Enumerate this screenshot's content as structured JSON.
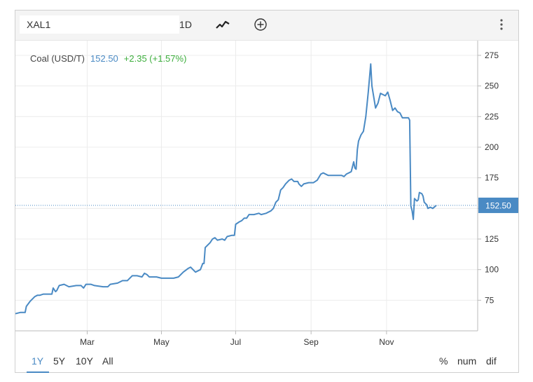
{
  "toolbar": {
    "symbol_value": "XAL1",
    "interval_label": "1D",
    "chart_type_icon": "line-chart-icon",
    "add_icon": "plus-circle-icon",
    "menu_icon": "vertical-ellipsis-icon"
  },
  "legend": {
    "name": "Coal (USD/T)",
    "price": "152.50",
    "change": "+2.35 (+1.57%)"
  },
  "colors": {
    "line": "#4a8ac4",
    "price_tag": "#4a8ac4",
    "change_positive": "#3cae3c",
    "grid": "#ececec"
  },
  "range_buttons": [
    {
      "label": "1Y",
      "active": true
    },
    {
      "label": "5Y",
      "active": false
    },
    {
      "label": "10Y",
      "active": false
    },
    {
      "label": "All",
      "active": false
    }
  ],
  "mode_buttons": [
    {
      "label": "%"
    },
    {
      "label": "num"
    },
    {
      "label": "dif"
    }
  ],
  "chart_data": {
    "type": "line",
    "title": "",
    "xlabel": "",
    "ylabel": "",
    "ylim": [
      50,
      287
    ],
    "y_ticks": [
      75,
      100,
      125,
      150,
      175,
      200,
      225,
      250,
      275
    ],
    "x_ticks": [
      {
        "label": "Mar",
        "t": 59
      },
      {
        "label": "May",
        "t": 120
      },
      {
        "label": "Jul",
        "t": 181
      },
      {
        "label": "Sep",
        "t": 243
      },
      {
        "label": "Nov",
        "t": 305
      }
    ],
    "xlim": [
      0,
      335
    ],
    "current_value": 152.5,
    "current_label": "152.50",
    "grid": true,
    "series": [
      {
        "points": [
          [
            0,
            64
          ],
          [
            4,
            65
          ],
          [
            8,
            65
          ],
          [
            9,
            70
          ],
          [
            12,
            74
          ],
          [
            16,
            78
          ],
          [
            18,
            79
          ],
          [
            20,
            79
          ],
          [
            23,
            80
          ],
          [
            28,
            80
          ],
          [
            30,
            80
          ],
          [
            31,
            85
          ],
          [
            33,
            82
          ],
          [
            34,
            83
          ],
          [
            36,
            87
          ],
          [
            40,
            88
          ],
          [
            44,
            86
          ],
          [
            50,
            87
          ],
          [
            54,
            87
          ],
          [
            56,
            85
          ],
          [
            58,
            88
          ],
          [
            62,
            88
          ],
          [
            65,
            87
          ],
          [
            72,
            86
          ],
          [
            76,
            86
          ],
          [
            78,
            88
          ],
          [
            84,
            89
          ],
          [
            88,
            91
          ],
          [
            92,
            91
          ],
          [
            96,
            95
          ],
          [
            100,
            95
          ],
          [
            104,
            94
          ],
          [
            106,
            97
          ],
          [
            108,
            96
          ],
          [
            110,
            94
          ],
          [
            116,
            94
          ],
          [
            120,
            93
          ],
          [
            126,
            93
          ],
          [
            130,
            93
          ],
          [
            134,
            94
          ],
          [
            138,
            98
          ],
          [
            142,
            101
          ],
          [
            144,
            102
          ],
          [
            146,
            100
          ],
          [
            148,
            98
          ],
          [
            152,
            100
          ],
          [
            154,
            105
          ],
          [
            155,
            105
          ],
          [
            156,
            118
          ],
          [
            158,
            120
          ],
          [
            160,
            122
          ],
          [
            162,
            125
          ],
          [
            164,
            126
          ],
          [
            166,
            124
          ],
          [
            170,
            125
          ],
          [
            172,
            124
          ],
          [
            174,
            127
          ],
          [
            178,
            128
          ],
          [
            180,
            128
          ],
          [
            181,
            137
          ],
          [
            184,
            139
          ],
          [
            186,
            140
          ],
          [
            188,
            142
          ],
          [
            190,
            142
          ],
          [
            192,
            145
          ],
          [
            196,
            145
          ],
          [
            200,
            146
          ],
          [
            202,
            145
          ],
          [
            206,
            146
          ],
          [
            210,
            148
          ],
          [
            212,
            150
          ],
          [
            214,
            155
          ],
          [
            216,
            157
          ],
          [
            218,
            165
          ],
          [
            220,
            167
          ],
          [
            222,
            170
          ],
          [
            225,
            173
          ],
          [
            227,
            174
          ],
          [
            229,
            172
          ],
          [
            232,
            172
          ],
          [
            233,
            170
          ],
          [
            235,
            168
          ],
          [
            237,
            170
          ],
          [
            241,
            171
          ],
          [
            245,
            171
          ],
          [
            248,
            173
          ],
          [
            251,
            178
          ],
          [
            253,
            179
          ],
          [
            257,
            177
          ],
          [
            260,
            177
          ],
          [
            265,
            177
          ],
          [
            268,
            177
          ],
          [
            270,
            176
          ],
          [
            272,
            178
          ],
          [
            274,
            179
          ],
          [
            276,
            180
          ],
          [
            278,
            188
          ],
          [
            279,
            183
          ],
          [
            280,
            182
          ],
          [
            281,
            198
          ],
          [
            282,
            205
          ],
          [
            284,
            210
          ],
          [
            286,
            213
          ],
          [
            288,
            225
          ],
          [
            290,
            245
          ],
          [
            292,
            268
          ],
          [
            293,
            250
          ],
          [
            296,
            232
          ],
          [
            298,
            236
          ],
          [
            300,
            244
          ],
          [
            302,
            243
          ],
          [
            304,
            242
          ],
          [
            306,
            245
          ],
          [
            308,
            238
          ],
          [
            310,
            230
          ],
          [
            312,
            232
          ],
          [
            314,
            229
          ],
          [
            316,
            228
          ],
          [
            318,
            224
          ],
          [
            320,
            224
          ],
          [
            323,
            224
          ],
          [
            324,
            222
          ],
          [
            325,
            152
          ],
          [
            326,
            148
          ],
          [
            327,
            141
          ],
          [
            328,
            158
          ],
          [
            330,
            156
          ],
          [
            331,
            157
          ],
          [
            332,
            163
          ],
          [
            334,
            162
          ],
          [
            335,
            160
          ],
          [
            336,
            155
          ],
          [
            338,
            153
          ],
          [
            339,
            150
          ],
          [
            341,
            151
          ],
          [
            343,
            150
          ],
          [
            346,
            152.5
          ]
        ]
      }
    ]
  }
}
